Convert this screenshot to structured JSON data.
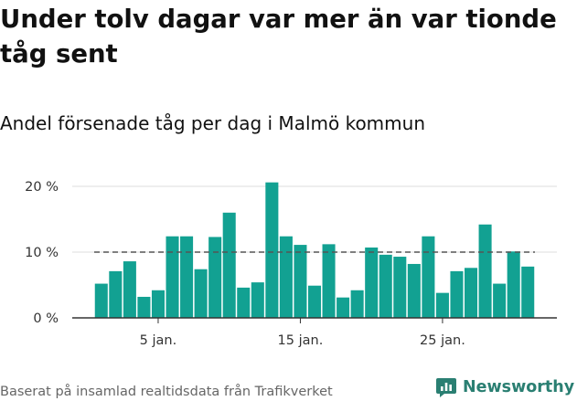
{
  "title": "Under tolv dagar var mer än var tionde tåg sent",
  "subtitle": "Andel försenade tåg per dag i Malmö kommun",
  "source": "Baserat på insamlad realtidsdata från Trafikverket",
  "brand": {
    "name": "Newsworthy",
    "logo_icon": "newsworthy-bar-chart-icon"
  },
  "colors": {
    "bar": "#12a192",
    "reference": "#555555",
    "grid": "#dddddd",
    "axis": "#333333",
    "brand": "#2a7f72"
  },
  "chart_data": {
    "type": "bar",
    "title": "Under tolv dagar var mer än var tionde tåg sent",
    "subtitle": "Andel försenade tåg per dag i Malmö kommun",
    "xlabel": "",
    "ylabel": "",
    "ylim": [
      0,
      20
    ],
    "yticks": [
      0,
      10,
      20
    ],
    "ytick_labels": [
      "0 %",
      "10 %",
      "20 %"
    ],
    "x_tick_labels": [
      {
        "label": "5 jan.",
        "day": 5
      },
      {
        "label": "15 jan.",
        "day": 15
      },
      {
        "label": "25 jan.",
        "day": 25
      }
    ],
    "days": [
      1,
      2,
      3,
      4,
      5,
      6,
      7,
      8,
      9,
      10,
      11,
      12,
      13,
      14,
      15,
      16,
      17,
      18,
      19,
      20,
      21,
      22,
      23,
      24,
      25,
      26,
      27,
      28,
      29,
      30,
      31
    ],
    "values": [
      5.2,
      7.1,
      8.6,
      3.2,
      4.2,
      12.4,
      12.4,
      7.4,
      12.3,
      16.0,
      4.6,
      5.4,
      20.6,
      12.4,
      11.1,
      4.9,
      11.2,
      3.1,
      4.2,
      10.7,
      9.6,
      9.3,
      8.2,
      12.4,
      3.8,
      7.1,
      7.6,
      14.2,
      5.2,
      10.1,
      7.8
    ],
    "reference_line": 10,
    "grid": true,
    "legend": "none"
  }
}
